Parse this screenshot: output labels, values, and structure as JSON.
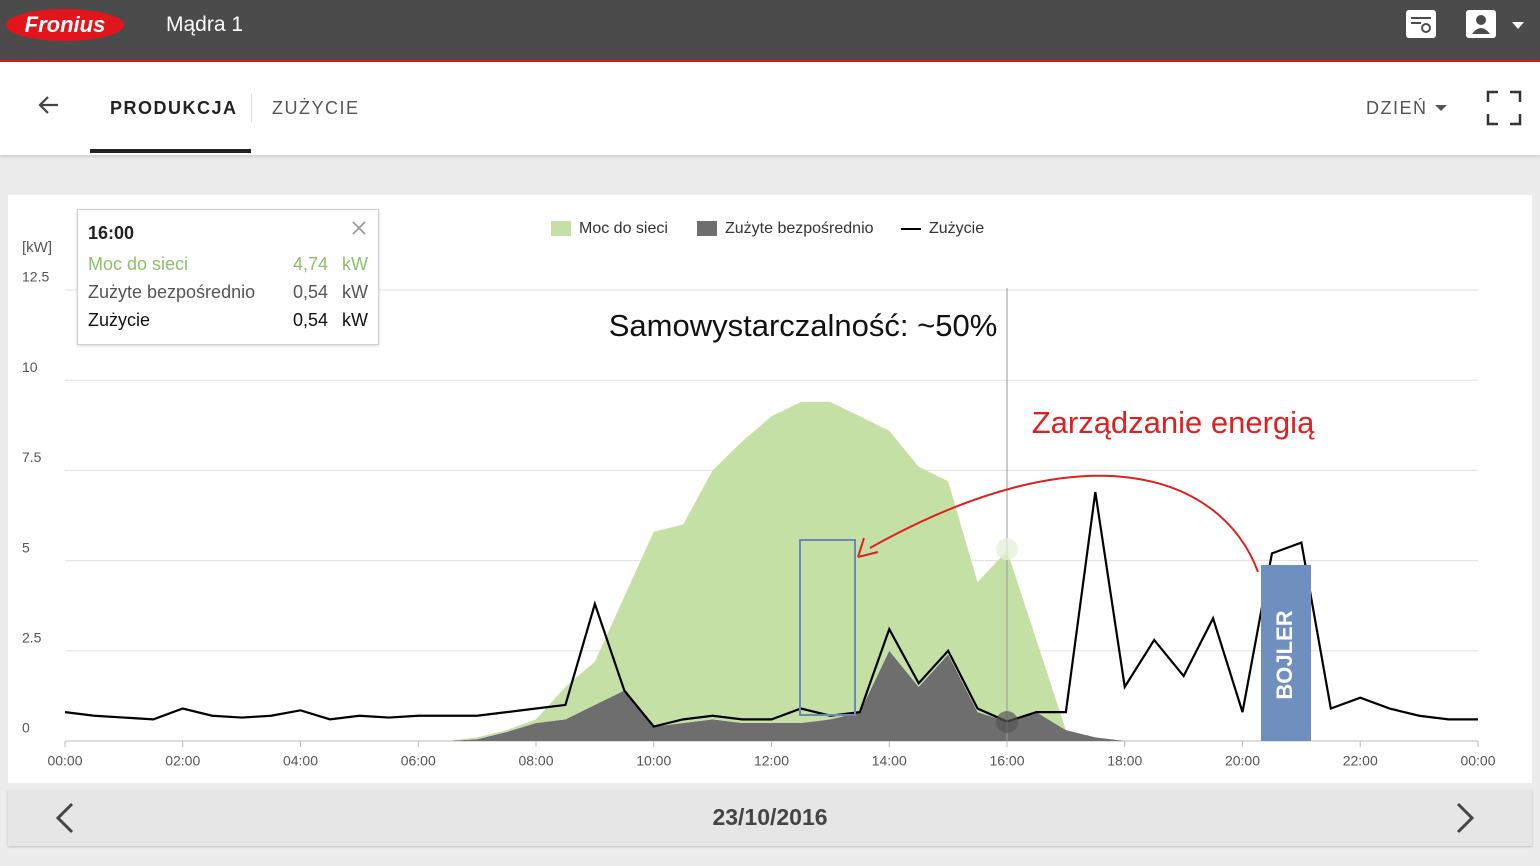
{
  "header": {
    "logo": "Fronius",
    "site": "Mądra 1"
  },
  "tabs": [
    "PRODUKCJA",
    "ZUŻYCIE"
  ],
  "period": "DZIEŃ",
  "tooltip": {
    "time": "16:00",
    "rows": [
      {
        "label": "Moc do sieci",
        "value": "4,74",
        "unit": "kW"
      },
      {
        "label": "Zużyte bezpośrednio",
        "value": "0,54",
        "unit": "kW"
      },
      {
        "label": "Zużycie",
        "value": "0,54",
        "unit": "kW"
      }
    ]
  },
  "chart_data": {
    "type": "area",
    "ylabel": "[kW]",
    "annotations": [
      "Samowystarczalność: ~50%",
      "Zarządzanie energią",
      "BOJLER"
    ],
    "x": [
      0,
      0.5,
      1,
      1.5,
      2,
      2.5,
      3,
      3.5,
      4,
      4.5,
      5,
      5.5,
      6,
      6.5,
      7,
      7.5,
      8,
      8.5,
      9,
      9.5,
      10,
      10.5,
      11,
      11.5,
      12,
      12.5,
      13,
      13.5,
      14,
      14.5,
      15,
      15.5,
      16,
      16.5,
      17,
      17.5,
      18,
      18.5,
      19,
      19.5,
      20,
      20.5,
      21,
      21.5,
      22,
      22.5,
      23,
      23.5,
      24
    ],
    "series": [
      {
        "name": "Zużyte bezpośrednio",
        "color": "#6e6e6e",
        "stack": true,
        "values": [
          0,
          0,
          0,
          0,
          0,
          0,
          0,
          0,
          0,
          0,
          0,
          0,
          0,
          0,
          0.05,
          0.25,
          0.5,
          0.6,
          1.0,
          1.4,
          0.4,
          0.5,
          0.6,
          0.5,
          0.5,
          0.5,
          0.6,
          0.8,
          2.5,
          1.5,
          2.4,
          0.8,
          0.54,
          0.8,
          0.3,
          0.1,
          0,
          0,
          0,
          0,
          0,
          0,
          0,
          0,
          0,
          0,
          0,
          0,
          0
        ]
      },
      {
        "name": "Moc do sieci",
        "color": "#c5e0a5",
        "stack": true,
        "values": [
          0,
          0,
          0,
          0,
          0,
          0,
          0,
          0,
          0,
          0,
          0,
          0,
          0,
          0,
          0.05,
          0.05,
          0.1,
          0.9,
          1.2,
          2.6,
          5.4,
          5.5,
          6.9,
          7.8,
          8.5,
          8.9,
          8.8,
          8.2,
          6.1,
          6.1,
          4.8,
          3.6,
          4.74,
          2.0,
          0,
          0,
          0,
          0,
          0,
          0,
          0,
          0,
          0,
          0,
          0,
          0,
          0,
          0,
          0
        ]
      },
      {
        "name": "Zużycie",
        "color": "#000000",
        "line": true,
        "values": [
          0.8,
          0.7,
          0.65,
          0.6,
          0.9,
          0.7,
          0.65,
          0.7,
          0.85,
          0.6,
          0.7,
          0.65,
          0.7,
          0.7,
          0.7,
          0.8,
          0.9,
          1.0,
          3.8,
          1.4,
          0.4,
          0.6,
          0.7,
          0.6,
          0.6,
          0.9,
          0.7,
          0.8,
          3.1,
          1.6,
          2.5,
          0.9,
          0.54,
          0.8,
          0.8,
          6.9,
          1.5,
          2.8,
          1.8,
          3.4,
          0.8,
          5.2,
          5.5,
          0.9,
          1.2,
          0.9,
          0.7,
          0.6,
          0.6
        ]
      }
    ],
    "xlim": [
      0,
      24
    ],
    "xticks": [
      {
        "value": 0,
        "label": "00:00"
      },
      {
        "value": 2,
        "label": "02:00"
      },
      {
        "value": 4,
        "label": "04:00"
      },
      {
        "value": 6,
        "label": "06:00"
      },
      {
        "value": 8,
        "label": "08:00"
      },
      {
        "value": 10,
        "label": "10:00"
      },
      {
        "value": 12,
        "label": "12:00"
      },
      {
        "value": 14,
        "label": "14:00"
      },
      {
        "value": 16,
        "label": "16:00"
      },
      {
        "value": 18,
        "label": "18:00"
      },
      {
        "value": 20,
        "label": "20:00"
      },
      {
        "value": 22,
        "label": "22:00"
      },
      {
        "value": 24,
        "label": "00:00"
      }
    ],
    "ylim": [
      0,
      12.5
    ],
    "yticks": [
      0,
      2.5,
      5,
      7.5,
      10,
      12.5
    ],
    "grid": true
  },
  "footer": {
    "date": "23/10/2016"
  }
}
